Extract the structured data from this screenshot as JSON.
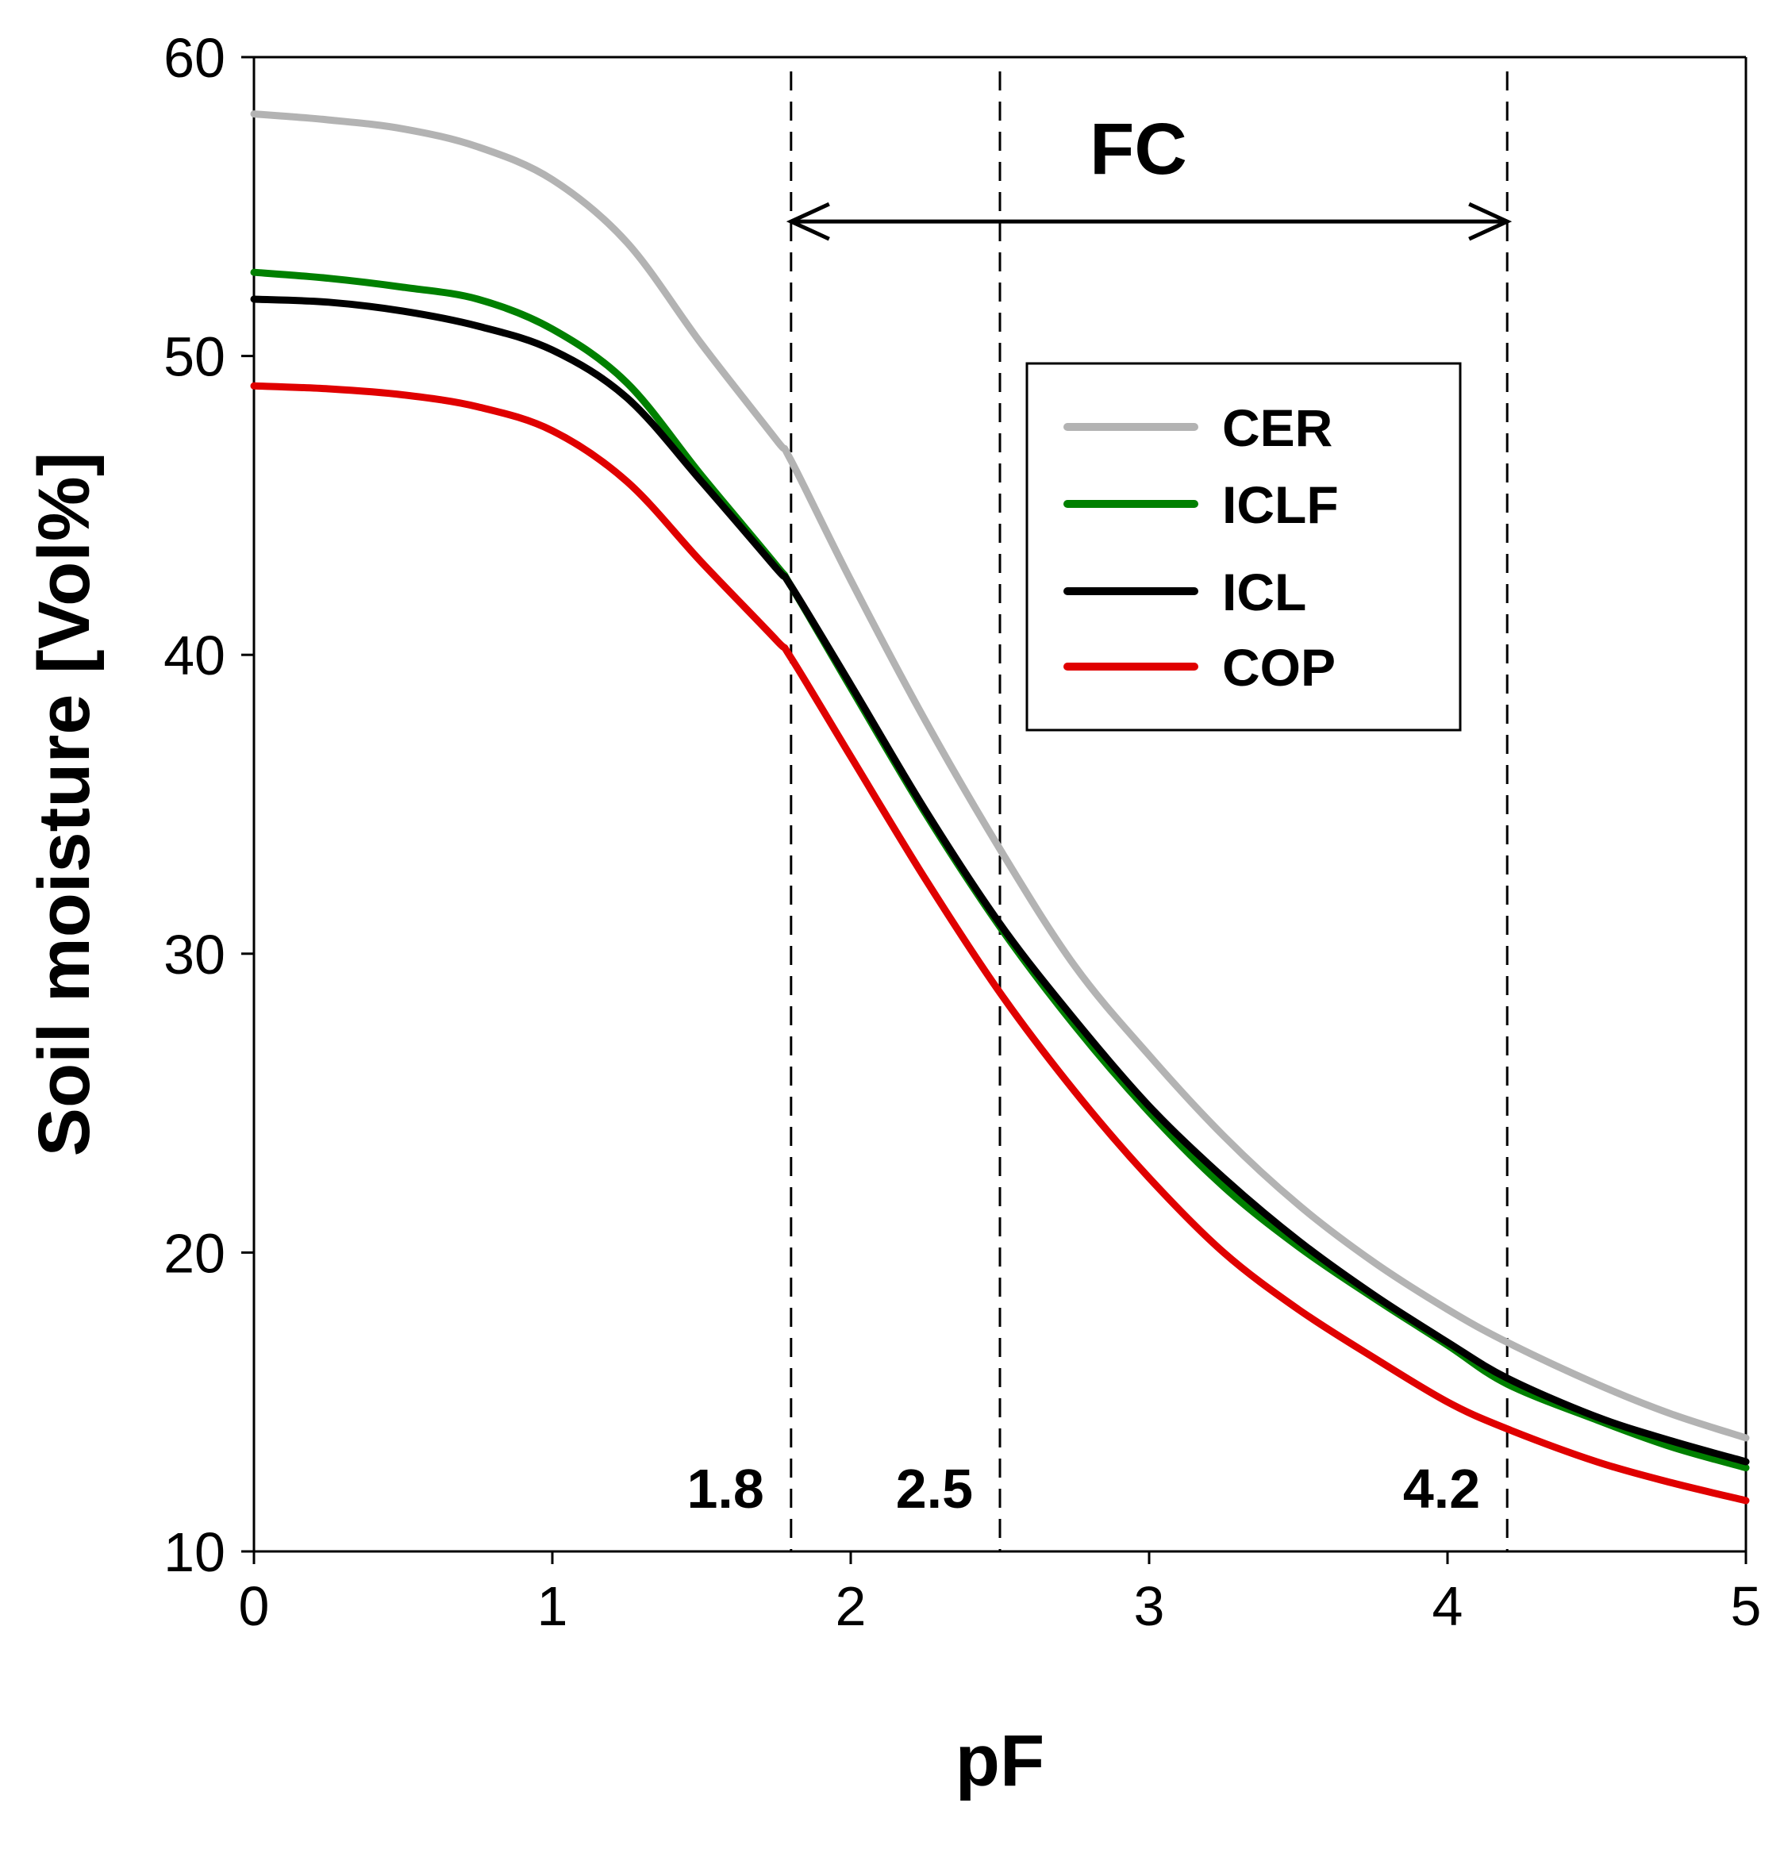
{
  "chart_data": {
    "type": "line",
    "title": "",
    "xlabel": "pF",
    "ylabel": "Soil moisture [Vol%]",
    "xlim": [
      0,
      5
    ],
    "ylim": [
      10,
      60
    ],
    "xticks": [
      0,
      1,
      2,
      3,
      4,
      5
    ],
    "xtick_labels": [
      "0",
      "1",
      "2",
      "3",
      "4",
      "5"
    ],
    "yticks": [
      10,
      20,
      30,
      40,
      50,
      60
    ],
    "ytick_labels": [
      "10",
      "20",
      "30",
      "40",
      "50",
      "60"
    ],
    "grid": false,
    "legend_position": "upper-right-inside",
    "x": [
      0,
      0.25,
      0.5,
      0.75,
      1,
      1.25,
      1.5,
      1.75,
      1.8,
      2,
      2.25,
      2.5,
      2.75,
      3,
      3.25,
      3.5,
      3.75,
      4,
      4.2,
      4.5,
      4.75,
      5
    ],
    "series": [
      {
        "name": "CER",
        "color": "#b3b3b3",
        "values": [
          58.1,
          57.9,
          57.6,
          57.0,
          55.9,
          53.8,
          50.4,
          47.2,
          46.5,
          42.5,
          37.8,
          33.5,
          29.6,
          26.6,
          23.9,
          21.6,
          19.7,
          18.1,
          17.0,
          15.6,
          14.6,
          13.8
        ]
      },
      {
        "name": "ICLF",
        "color": "#008000",
        "values": [
          52.8,
          52.6,
          52.3,
          51.9,
          50.9,
          49.1,
          46.0,
          43.0,
          42.3,
          38.9,
          34.7,
          30.9,
          27.6,
          24.7,
          22.2,
          20.2,
          18.5,
          16.9,
          15.6,
          14.4,
          13.5,
          12.8
        ]
      },
      {
        "name": "ICL",
        "color": "#000000",
        "values": [
          51.9,
          51.8,
          51.5,
          51.0,
          50.2,
          48.6,
          45.8,
          42.9,
          42.3,
          39.0,
          34.8,
          31.0,
          27.8,
          24.9,
          22.5,
          20.4,
          18.6,
          17.0,
          15.8,
          14.5,
          13.7,
          13.0
        ]
      },
      {
        "name": "COP",
        "color": "#e00000",
        "values": [
          49.0,
          48.9,
          48.7,
          48.3,
          47.5,
          45.8,
          43.1,
          40.5,
          39.9,
          36.6,
          32.5,
          28.7,
          25.4,
          22.5,
          20.0,
          18.1,
          16.5,
          15.0,
          14.1,
          13.0,
          12.3,
          11.7
        ]
      }
    ],
    "reference_lines": [
      {
        "x": 1.8,
        "label": "1.8"
      },
      {
        "x": 2.5,
        "label": "2.5"
      },
      {
        "x": 4.2,
        "label": "4.2"
      }
    ],
    "range_annotation": {
      "label": "FC",
      "from": 1.8,
      "to": 4.2,
      "y": 54.5
    }
  }
}
